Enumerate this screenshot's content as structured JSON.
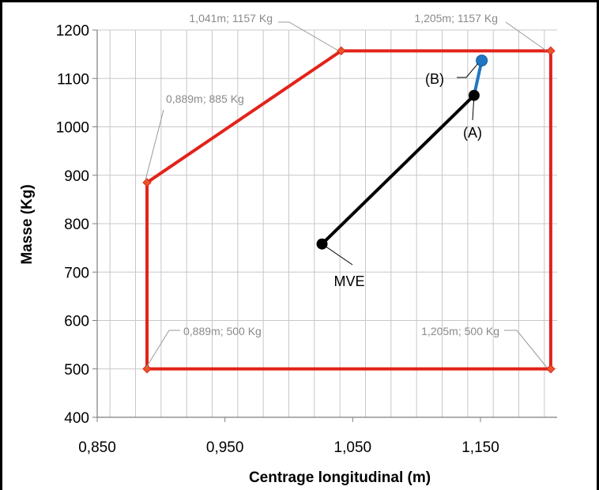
{
  "chart_data": {
    "type": "scatter",
    "title": "",
    "xlabel": "Centrage longitudinal (m)",
    "ylabel": "Masse (Kg)",
    "xlim": [
      0.85,
      1.21
    ],
    "ylim": [
      400,
      1200
    ],
    "x_ticks": [
      "0,850",
      "0,950",
      "1,050",
      "1,150"
    ],
    "x_tick_values": [
      0.85,
      0.95,
      1.05,
      1.15
    ],
    "y_ticks": [
      "400",
      "500",
      "600",
      "700",
      "800",
      "900",
      "1000",
      "1100",
      "1200"
    ],
    "y_tick_values": [
      400,
      500,
      600,
      700,
      800,
      900,
      1000,
      1100,
      1200
    ],
    "grid": true,
    "envelope": {
      "color": "#e2231a",
      "marker_color": "#e8572a",
      "points": [
        {
          "x": 0.889,
          "y": 500
        },
        {
          "x": 0.889,
          "y": 885
        },
        {
          "x": 1.041,
          "y": 1157
        },
        {
          "x": 1.205,
          "y": 1157
        },
        {
          "x": 1.205,
          "y": 500
        }
      ],
      "labels": [
        {
          "text": "0,889m; 500 Kg",
          "x": 0.889,
          "y": 500
        },
        {
          "text": "0,889m;  885 Kg",
          "x": 0.889,
          "y": 885
        },
        {
          "text": "1,041m; 1157 Kg",
          "x": 1.041,
          "y": 1157
        },
        {
          "text": "1,205m; 1157 Kg",
          "x": 1.205,
          "y": 1157
        },
        {
          "text": "1,205m; 500 Kg",
          "x": 1.205,
          "y": 500
        }
      ]
    },
    "series": [
      {
        "name": "MVE-(A)",
        "color": "#000000",
        "points": [
          {
            "x": 1.026,
            "y": 758
          },
          {
            "x": 1.145,
            "y": 1065
          }
        ]
      },
      {
        "name": "(A)-(B)",
        "color": "#1f77c4",
        "points": [
          {
            "x": 1.145,
            "y": 1065
          },
          {
            "x": 1.151,
            "y": 1137
          }
        ]
      }
    ],
    "point_labels": [
      {
        "text": "MVE",
        "x": 1.026,
        "y": 758
      },
      {
        "text": "(A)",
        "x": 1.145,
        "y": 1065
      },
      {
        "text": "(B)",
        "x": 1.151,
        "y": 1137
      }
    ]
  }
}
